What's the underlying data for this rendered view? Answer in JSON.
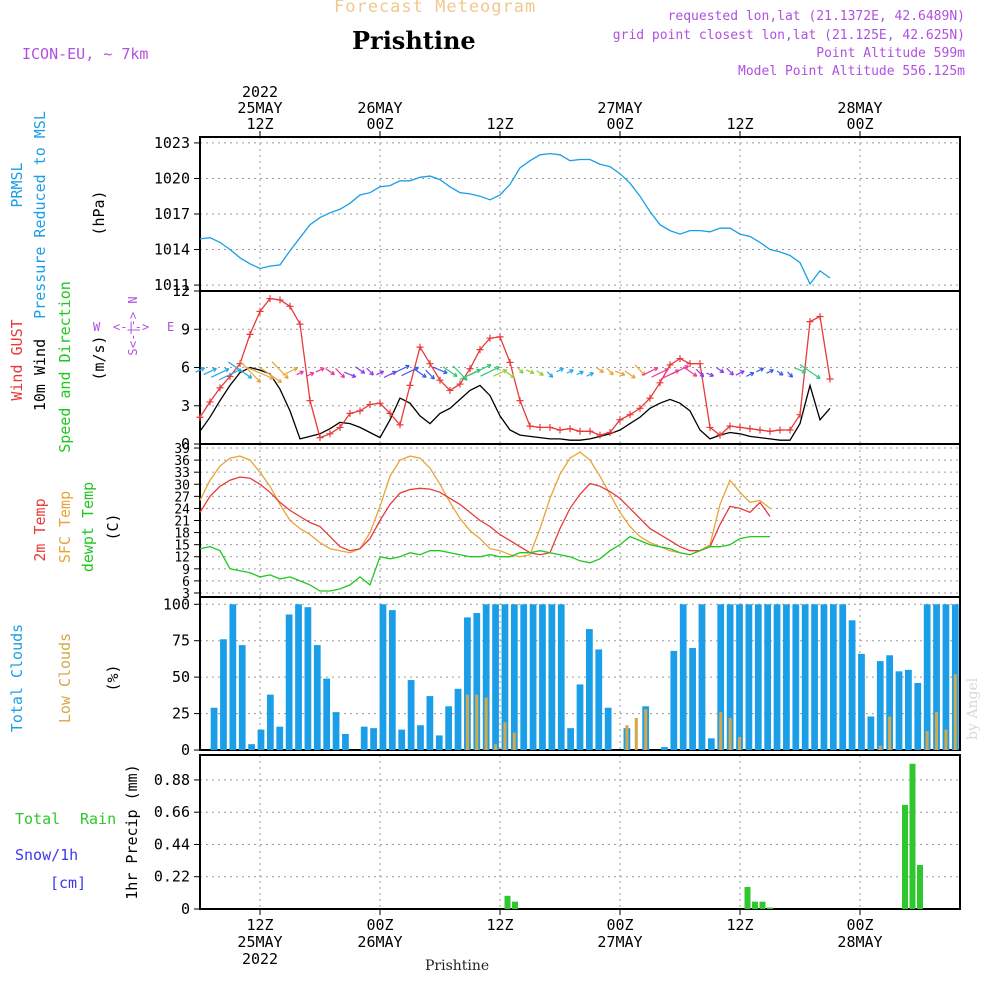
{
  "header": {
    "product": "Forecast Meteogram",
    "location": "Prishtine",
    "model": "ICON-EU, ~ 7km",
    "requested": "requested lon,lat (21.1372E, 42.6489N)",
    "grid_point": "grid point closest lon,lat (21.125E, 42.625N)",
    "point_altitude": "Point Altitude 599m",
    "model_altitude": "Model Point Altitude 556.125m",
    "footer_location": "Prishtine",
    "watermark": "by Angel"
  },
  "colors": {
    "pressure": "#1a9ee8",
    "gust": "#e83a3a",
    "wind": "#000000",
    "label_green": "#1ec81e",
    "sfc": "#e8a43a",
    "dew": "#1ec81e",
    "total_cloud": "#1a9ee8",
    "low_cloud": "#d4a848",
    "rain": "#2ec82e",
    "snow_label": "#3a3ae8",
    "header_purple": "#b050e0",
    "title_orange": "#f0c890"
  },
  "chart_data": {
    "time": {
      "start": "2022-05-25 06Z",
      "step_hours": 1,
      "count": 64,
      "top_axis": [
        {
          "hour": 6,
          "labels": [
            "2022",
            "25MAY",
            "12Z"
          ]
        },
        {
          "hour": 18,
          "labels": [
            "26MAY",
            "00Z"
          ]
        },
        {
          "hour": 30,
          "labels": [
            "12Z"
          ]
        },
        {
          "hour": 42,
          "labels": [
            "27MAY",
            "00Z"
          ]
        },
        {
          "hour": 54,
          "labels": [
            "12Z"
          ]
        },
        {
          "hour": 66,
          "labels": [
            "28MAY",
            "00Z"
          ]
        }
      ],
      "bottom_axis": [
        {
          "hour": 6,
          "labels": [
            "12Z",
            "25MAY",
            "2022"
          ]
        },
        {
          "hour": 18,
          "labels": [
            "00Z",
            "26MAY"
          ]
        },
        {
          "hour": 30,
          "labels": [
            "12Z"
          ]
        },
        {
          "hour": 42,
          "labels": [
            "00Z",
            "27MAY"
          ]
        },
        {
          "hour": 54,
          "labels": [
            "12Z"
          ]
        },
        {
          "hour": 66,
          "labels": [
            "00Z",
            "28MAY"
          ]
        }
      ]
    },
    "pressure": {
      "type": "line",
      "labels": [
        "PRMSL",
        "Pressure Reduced to MSL",
        "(hPa)"
      ],
      "unit": "hPa",
      "ylim": [
        1010.5,
        1023.5
      ],
      "yticks": [
        1011,
        1014,
        1017,
        1020,
        1023
      ],
      "values": [
        1014.9,
        1015.0,
        1014.6,
        1014.0,
        1013.3,
        1012.8,
        1012.4,
        1012.6,
        1012.7,
        1013.9,
        1015.0,
        1016.1,
        1016.7,
        1017.1,
        1017.4,
        1017.9,
        1018.6,
        1018.8,
        1019.3,
        1019.4,
        1019.8,
        1019.8,
        1020.1,
        1020.2,
        1019.9,
        1019.3,
        1018.8,
        1018.7,
        1018.5,
        1018.2,
        1018.6,
        1019.5,
        1020.9,
        1021.5,
        1022.0,
        1022.1,
        1022.0,
        1021.5,
        1021.6,
        1021.6,
        1021.2,
        1021.0,
        1020.4,
        1019.6,
        1018.5,
        1017.2,
        1016.1,
        1015.6,
        1015.3,
        1015.6,
        1015.6,
        1015.5,
        1015.8,
        1015.8,
        1015.3,
        1015.1,
        1014.6,
        1014.0,
        1013.8,
        1013.5,
        1012.9,
        1011.1,
        1012.2,
        1011.6
      ]
    },
    "wind": {
      "type": "line",
      "labels": [
        "Wind GUST",
        "10m Wind",
        "Speed and Direction",
        "(m/s)"
      ],
      "direction_legend": {
        "n": "N",
        "s": "S",
        "w": "W",
        "e": "E",
        "glyph": "<-|->"
      },
      "ylim": [
        0,
        12
      ],
      "yticks": [
        0,
        3,
        6,
        9,
        12
      ],
      "gust": [
        2.1,
        3.3,
        4.4,
        5.3,
        6.3,
        8.6,
        10.4,
        11.4,
        11.3,
        10.8,
        9.4,
        3.4,
        0.5,
        0.8,
        1.3,
        2.4,
        2.6,
        3.1,
        3.2,
        2.4,
        1.5,
        4.6,
        7.6,
        6.3,
        5.0,
        4.2,
        4.7,
        5.9,
        7.4,
        8.3,
        8.4,
        6.4,
        3.4,
        1.4,
        1.3,
        1.3,
        1.1,
        1.2,
        1.0,
        1.0,
        0.7,
        0.9,
        1.9,
        2.3,
        2.8,
        3.6,
        4.8,
        6.2,
        6.7,
        6.3,
        6.3,
        1.3,
        0.7,
        1.4,
        1.3,
        1.2,
        1.1,
        1.0,
        1.1,
        1.1,
        2.3,
        9.6,
        10.0,
        5.1
      ],
      "speed": [
        1.0,
        2.1,
        3.4,
        4.6,
        5.6,
        6.0,
        5.8,
        5.5,
        4.3,
        2.6,
        0.4,
        0.6,
        0.8,
        1.2,
        1.7,
        1.6,
        1.3,
        0.9,
        0.5,
        1.9,
        3.6,
        3.2,
        2.2,
        1.6,
        2.4,
        2.8,
        3.5,
        4.2,
        4.6,
        3.8,
        2.2,
        1.1,
        0.7,
        0.6,
        0.5,
        0.4,
        0.4,
        0.3,
        0.3,
        0.4,
        0.6,
        0.8,
        1.1,
        1.6,
        2.1,
        2.8,
        3.2,
        3.5,
        3.2,
        2.6,
        1.1,
        0.4,
        0.7,
        0.9,
        0.8,
        0.6,
        0.5,
        0.4,
        0.3,
        0.3,
        1.6,
        4.6,
        1.9,
        2.8
      ]
    },
    "temperature": {
      "type": "line",
      "labels": [
        "2m Temp",
        "SFC Temp",
        "dewpt Temp",
        "(C)"
      ],
      "ylim": [
        2,
        40
      ],
      "yticks": [
        3,
        6,
        9,
        12,
        15,
        18,
        21,
        24,
        27,
        30,
        33,
        36,
        39
      ],
      "temp_2m": [
        23.0,
        27.0,
        29.5,
        31.0,
        31.8,
        31.5,
        30.0,
        28.0,
        25.5,
        23.5,
        22.0,
        20.5,
        19.5,
        17.0,
        14.5,
        13.5,
        14.0,
        16.5,
        21.0,
        25.0,
        27.8,
        28.7,
        29.0,
        28.8,
        28.0,
        26.5,
        25.0,
        23.0,
        21.0,
        19.5,
        17.5,
        16.0,
        14.5,
        13.0,
        12.5,
        13.0,
        19.0,
        24.0,
        27.5,
        30.2,
        29.5,
        28.2,
        26.5,
        24.0,
        21.5,
        19.0,
        17.5,
        16.0,
        14.5,
        13.5,
        13.5,
        14.5,
        20.0,
        24.5,
        24.0,
        23.0,
        25.5,
        22.0
      ],
      "temp_sfc": [
        26.0,
        31.0,
        34.5,
        36.5,
        37.0,
        36.0,
        33.0,
        29.5,
        25.0,
        21.0,
        19.0,
        17.5,
        15.5,
        14.0,
        13.5,
        13.0,
        14.0,
        18.0,
        24.5,
        32.0,
        36.0,
        37.0,
        36.5,
        34.0,
        30.0,
        25.5,
        21.5,
        18.5,
        16.5,
        14.0,
        13.5,
        12.5,
        12.0,
        12.5,
        19.0,
        26.5,
        32.5,
        36.5,
        38.0,
        36.0,
        32.0,
        27.5,
        23.0,
        19.5,
        17.0,
        15.5,
        14.5,
        13.5,
        13.0,
        12.5,
        13.5,
        15.0,
        25.0,
        31.0,
        28.0,
        25.5,
        26.0,
        24.0
      ],
      "dewpoint": [
        14.0,
        14.5,
        13.5,
        9.0,
        8.5,
        8.0,
        7.0,
        7.5,
        6.5,
        7.0,
        6.0,
        5.0,
        3.5,
        3.5,
        4.0,
        5.0,
        7.0,
        5.0,
        12.0,
        11.5,
        12.0,
        13.0,
        12.5,
        13.5,
        13.5,
        13.0,
        12.5,
        12.0,
        12.0,
        12.5,
        12.0,
        12.0,
        13.0,
        13.0,
        13.5,
        13.0,
        12.5,
        12.0,
        11.0,
        10.5,
        11.5,
        13.5,
        15.0,
        17.0,
        16.0,
        15.0,
        14.5,
        14.0,
        13.0,
        12.5,
        13.5,
        14.5,
        14.5,
        15.0,
        16.5,
        17.0,
        17.0,
        17.0
      ]
    },
    "clouds": {
      "type": "bar",
      "labels": [
        "Total Clouds",
        "Low Clouds",
        "(%)"
      ],
      "ylim": [
        0,
        105
      ],
      "yticks": [
        0,
        25,
        50,
        75,
        100
      ],
      "total": [
        0,
        29,
        76,
        100,
        72,
        4,
        14,
        38,
        16,
        93,
        100,
        98,
        72,
        49,
        26,
        11,
        0,
        16,
        15,
        100,
        96,
        14,
        48,
        17,
        37,
        10,
        30,
        42,
        91,
        94,
        100,
        100,
        100,
        100,
        100,
        100,
        100,
        100,
        100,
        15,
        45,
        83,
        69,
        29,
        0,
        15,
        0,
        30,
        0,
        2,
        68,
        100,
        70,
        100,
        8,
        100,
        100,
        100,
        100,
        100,
        100,
        100,
        100,
        100,
        100,
        100,
        100,
        100,
        100,
        89,
        66,
        23,
        61,
        65,
        54,
        55,
        46,
        100,
        100,
        100,
        100
      ],
      "low": [
        0,
        0,
        0,
        0,
        0,
        0,
        0,
        0,
        0,
        0,
        0,
        0,
        0,
        0,
        0,
        0,
        0,
        0,
        0,
        0,
        0,
        0,
        0,
        0,
        0,
        0,
        0,
        0,
        38,
        38,
        36,
        4,
        19,
        12,
        0,
        0,
        0,
        0,
        0,
        0,
        0,
        0,
        0,
        0,
        0,
        17,
        22,
        28,
        0,
        0,
        0,
        0,
        0,
        0,
        0,
        26,
        22,
        9,
        0,
        0,
        0,
        0,
        0,
        0,
        0,
        0,
        0,
        0,
        0,
        0,
        0,
        0,
        3,
        23,
        0,
        0,
        0,
        13,
        26,
        14,
        52
      ]
    },
    "precip": {
      "type": "bar",
      "labels": [
        "1hr Precip (mm)",
        "Total Rain",
        "Snow/1h",
        "[cm]"
      ],
      "ylim": [
        0,
        1.05
      ],
      "yticks": [
        0,
        0.22,
        0.44,
        0.66,
        0.88
      ],
      "ytick_labels": [
        "0",
        "0.22",
        "0.44",
        "0.66",
        "0.88"
      ],
      "hours": [
        30.75,
        31.5,
        54.75,
        55.5,
        56.25,
        57.0,
        70.5,
        71.25,
        72.0
      ],
      "values": [
        0.09,
        0.05,
        0.15,
        0.05,
        0.05,
        0.01,
        0.71,
        0.99,
        0.3
      ]
    }
  }
}
